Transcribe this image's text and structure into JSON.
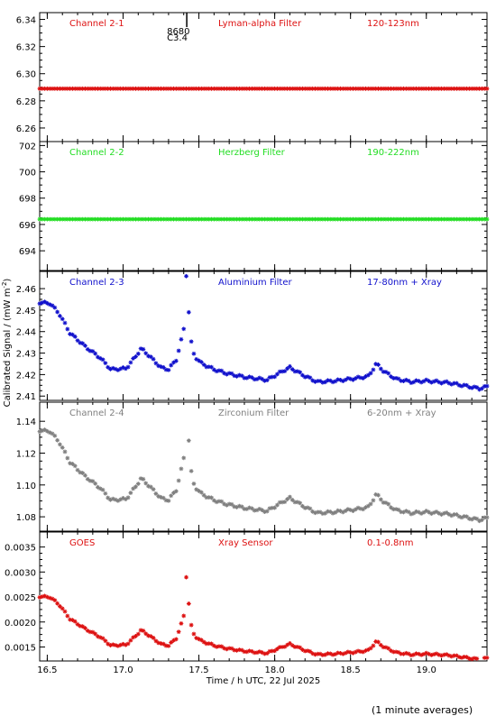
{
  "chart_data": {
    "type": "scatter",
    "marker": "*",
    "x_range": [
      16.45,
      19.4
    ],
    "x_ticks": [
      16.5,
      17.0,
      17.5,
      18.0,
      18.5,
      19.0
    ],
    "x_tick_labels": [
      "16.5",
      "17.0",
      "17.5",
      "18.0",
      "18.5",
      "19.0"
    ],
    "xlabel": "Time / h UTC, 22 Jul 2025",
    "ylabel": "Calibrated Signal / (mW m",
    "ylabel_superscript": "-2",
    "ylabel_tail": ")",
    "footnote": "(1 minute averages)",
    "panels": [
      {
        "name": "Channel 2-1",
        "filter": "Lyman-alpha Filter",
        "band": "120-123nm",
        "color": "#dd1111",
        "ylim": [
          6.25,
          6.345
        ],
        "yticks": [
          6.26,
          6.28,
          6.3,
          6.32,
          6.34
        ],
        "ytick_labels": [
          "6.26",
          "6.28",
          "6.30",
          "6.32",
          "6.34"
        ],
        "kind": "flat",
        "base": 6.289,
        "annotation": [
          "8680",
          "C3.4"
        ],
        "annotation_x": 17.42
      },
      {
        "name": "Channel 2-2",
        "filter": "Herzberg Filter",
        "band": "190-222nm",
        "color": "#22dd22",
        "ylim": [
          692.5,
          702.3
        ],
        "yticks": [
          694,
          696,
          698,
          700,
          702
        ],
        "ytick_labels": [
          "694",
          "696",
          "698",
          "700",
          "702"
        ],
        "kind": "flat",
        "base": 696.4
      },
      {
        "name": "Channel 2-3",
        "filter": "Aluminium Filter",
        "band": "17-80nm + Xray",
        "color": "#1111cc",
        "ylim": [
          2.408,
          2.468
        ],
        "yticks": [
          2.41,
          2.42,
          2.43,
          2.44,
          2.45,
          2.46
        ],
        "ytick_labels": [
          "2.41",
          "2.42",
          "2.43",
          "2.44",
          "2.45",
          "2.46"
        ],
        "kind": "flare",
        "base": 2.4135,
        "scale": 0.0445
      },
      {
        "name": "Channel 2-4",
        "filter": "Zirconium Filter",
        "band": "6-20nm + Xray",
        "color": "#808080",
        "ylim": [
          1.071,
          1.152
        ],
        "yticks": [
          1.08,
          1.1,
          1.12,
          1.14
        ],
        "ytick_labels": [
          "1.08",
          "1.10",
          "1.12",
          "1.14"
        ],
        "kind": "flare",
        "base": 1.078,
        "scale": 0.0625
      },
      {
        "name": "GOES",
        "filter": "Xray Sensor",
        "band": "0.1-0.8nm",
        "color": "#dd1111",
        "ylim": [
          0.00122,
          0.0038
        ],
        "yticks": [
          0.0015,
          0.002,
          0.0025,
          0.003,
          0.0035
        ],
        "ytick_labels": [
          "0.0015",
          "0.0020",
          "0.0025",
          "0.0030",
          "0.0035"
        ],
        "kind": "flare",
        "base": 0.00125,
        "scale": 0.0014
      }
    ],
    "series_shape_keyframes": {
      "t": [
        16.45,
        16.52,
        16.58,
        16.65,
        16.75,
        16.85,
        16.92,
        17.02,
        17.08,
        17.12,
        17.18,
        17.25,
        17.3,
        17.35,
        17.38,
        17.4,
        17.42,
        17.44,
        17.47,
        17.52,
        17.6,
        17.68,
        17.8,
        17.95,
        18.05,
        18.1,
        18.2,
        18.28,
        18.4,
        18.55,
        18.62,
        18.67,
        18.72,
        18.8,
        18.9,
        19.0,
        19.15,
        19.25,
        19.35,
        19.4
      ],
      "v": [
        0.9,
        0.89,
        0.78,
        0.58,
        0.44,
        0.32,
        0.2,
        0.21,
        0.33,
        0.42,
        0.33,
        0.22,
        0.2,
        0.3,
        0.48,
        0.62,
        1.3,
        0.55,
        0.34,
        0.26,
        0.2,
        0.16,
        0.12,
        0.09,
        0.18,
        0.22,
        0.13,
        0.07,
        0.08,
        0.11,
        0.13,
        0.26,
        0.18,
        0.1,
        0.07,
        0.08,
        0.06,
        0.03,
        0.0,
        0.02
      ]
    }
  }
}
